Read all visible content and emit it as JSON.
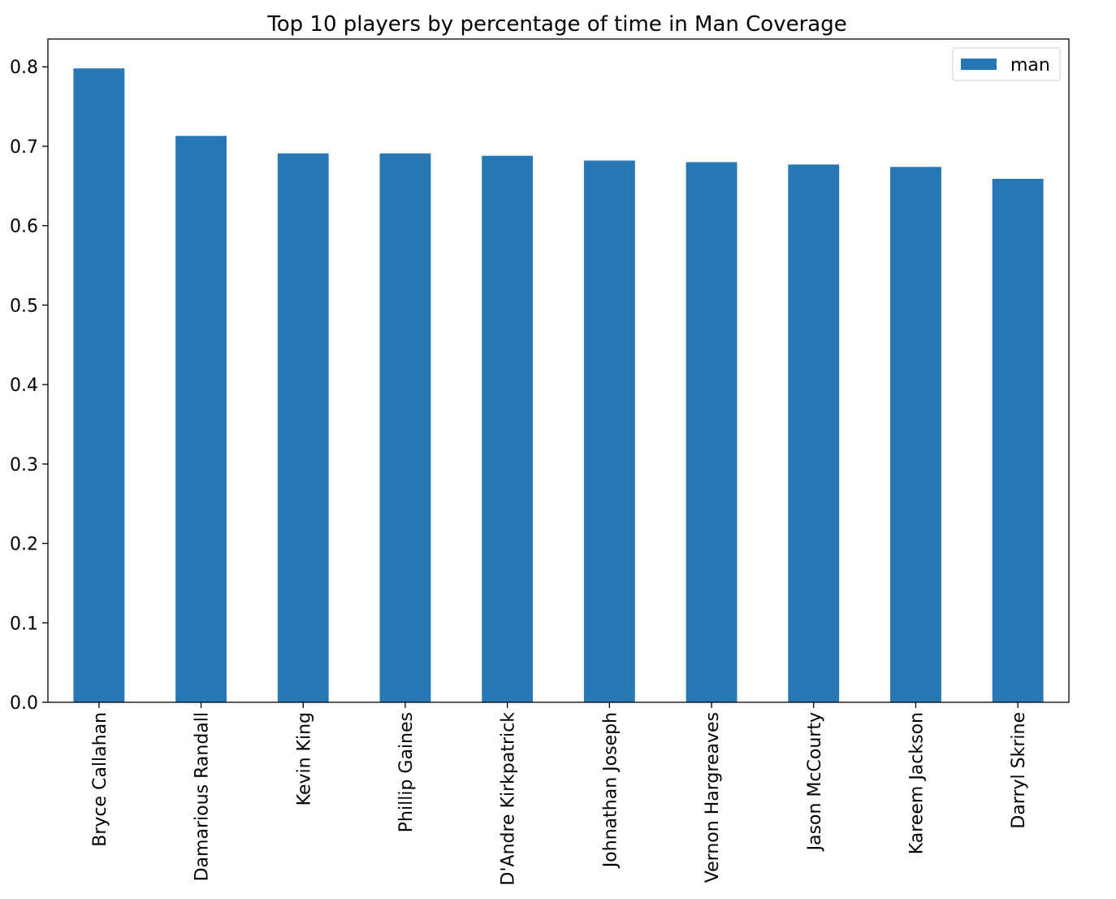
{
  "chart_data": {
    "type": "bar",
    "title": "Top 10 players by percentage of time in Man Coverage",
    "xlabel": "",
    "ylabel": "",
    "categories": [
      "Bryce Callahan",
      "Damarious Randall",
      "Kevin King",
      "Phillip Gaines",
      "D'Andre Kirkpatrick",
      "Johnathan Joseph",
      "Vernon Hargreaves",
      "Jason McCourty",
      "Kareem Jackson",
      "Darryl Skrine"
    ],
    "series": [
      {
        "name": "man",
        "color": "#2777b4",
        "values": [
          0.798,
          0.713,
          0.691,
          0.691,
          0.688,
          0.682,
          0.68,
          0.677,
          0.674,
          0.659
        ]
      }
    ],
    "ylim": [
      0,
      0.835
    ],
    "yticks": [
      "0.0",
      "0.1",
      "0.2",
      "0.3",
      "0.4",
      "0.5",
      "0.6",
      "0.7",
      "0.8"
    ],
    "grid": false,
    "legend": {
      "position": "top-right"
    }
  }
}
